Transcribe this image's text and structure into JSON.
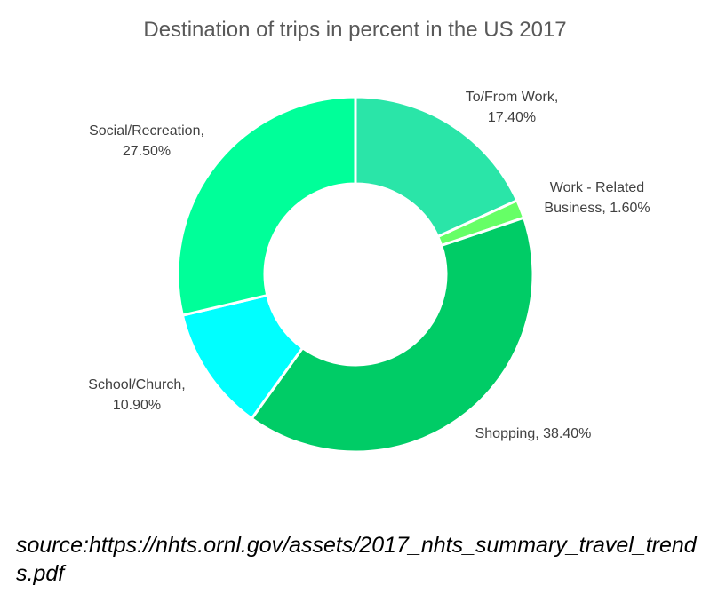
{
  "chart_data": {
    "type": "pie",
    "title": "Destination of trips in percent in the US 2017",
    "donut": true,
    "legend": "none",
    "slices": [
      {
        "name": "To/From Work",
        "value": 17.4,
        "label_lines": [
          "To/From Work,",
          "17.40%"
        ],
        "color": "#2ae5a8"
      },
      {
        "name": "Work - Related Business",
        "value": 1.6,
        "label_lines": [
          "Work - Related",
          "Business, 1.60%"
        ],
        "color": "#66ff66"
      },
      {
        "name": "Shopping",
        "value": 38.4,
        "label_lines": [
          "Shopping, 38.40%"
        ],
        "color": "#00cc66"
      },
      {
        "name": "School/Church",
        "value": 10.9,
        "label_lines": [
          "School/Church,",
          "10.90%"
        ],
        "color": "#00ffff"
      },
      {
        "name": "Social/Recreation",
        "value": 27.5,
        "label_lines": [
          "Social/Recreation,",
          "27.50%"
        ],
        "color": "#00ff99"
      }
    ]
  },
  "source": "source:https://nhts.ornl.gov/assets/2017_nhts_summary_travel_trends.pdf"
}
